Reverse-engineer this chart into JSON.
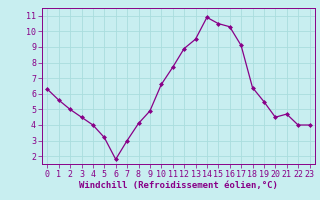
{
  "x": [
    0,
    1,
    2,
    3,
    4,
    5,
    6,
    7,
    8,
    9,
    10,
    11,
    12,
    13,
    14,
    15,
    16,
    17,
    18,
    19,
    20,
    21,
    22,
    23
  ],
  "y": [
    6.3,
    5.6,
    5.0,
    4.5,
    4.0,
    3.2,
    1.8,
    3.0,
    4.1,
    4.9,
    6.6,
    7.7,
    8.9,
    9.5,
    10.9,
    10.5,
    10.3,
    9.1,
    6.4,
    5.5,
    4.5,
    4.7,
    4.0,
    4.0
  ],
  "line_color": "#880088",
  "marker": "D",
  "marker_size": 2.0,
  "bg_color": "#c8eef0",
  "grid_color": "#aadddd",
  "xlabel": "Windchill (Refroidissement éolien,°C)",
  "xlabel_color": "#880088",
  "xlabel_fontsize": 6.5,
  "tick_color": "#880088",
  "tick_fontsize": 6.0,
  "xlim": [
    -0.5,
    23.5
  ],
  "ylim": [
    1.5,
    11.5
  ],
  "yticks": [
    2,
    3,
    4,
    5,
    6,
    7,
    8,
    9,
    10,
    11
  ],
  "xticks": [
    0,
    1,
    2,
    3,
    4,
    5,
    6,
    7,
    8,
    9,
    10,
    11,
    12,
    13,
    14,
    15,
    16,
    17,
    18,
    19,
    20,
    21,
    22,
    23
  ]
}
